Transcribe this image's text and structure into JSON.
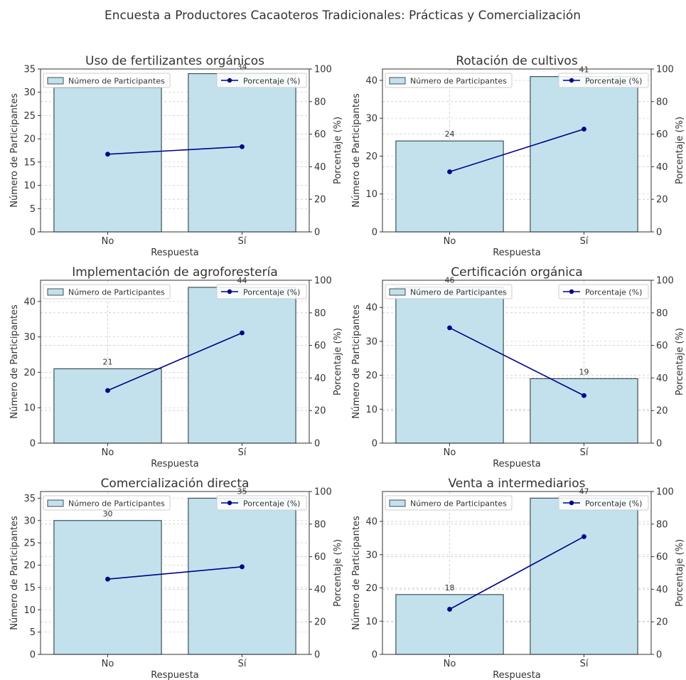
{
  "figure_title": "Encuesta a Productores Cacaoteros Tradicionales: Prácticas y Comercialización",
  "colors": {
    "bar_fill": "#c3e1ec",
    "bar_edge": "#3d4f57",
    "line": "#00008b",
    "grid": "#d0d0d0",
    "text": "#333333"
  },
  "chart_data": [
    {
      "type": "bar",
      "title": "Uso de fertilizantes orgánicos",
      "xlabel": "Respuesta",
      "ylabel": "Número de Participantes",
      "y2label": "Porcentaje (%)",
      "categories": [
        "No",
        "Sí"
      ],
      "ylim": [
        0,
        35
      ],
      "y2lim": [
        0,
        100
      ],
      "yticks": [
        0,
        5,
        10,
        15,
        20,
        25,
        30,
        35
      ],
      "y2ticks": [
        0,
        20,
        40,
        60,
        80,
        100
      ],
      "bar_labels": [
        "",
        "34"
      ],
      "series": [
        {
          "name": "Número de Participantes",
          "kind": "bar",
          "values": [
            31,
            34
          ]
        },
        {
          "name": "Porcentaje (%)",
          "kind": "line",
          "axis": "right",
          "values": [
            47.7,
            52.3
          ]
        }
      ],
      "legend": [
        "top-left",
        "top-right"
      ],
      "grid": true
    },
    {
      "type": "bar",
      "title": "Rotación de cultivos",
      "xlabel": "Respuesta",
      "ylabel": "Número de Participantes",
      "y2label": "Porcentaje (%)",
      "categories": [
        "No",
        "Sí"
      ],
      "ylim": [
        0,
        43
      ],
      "y2lim": [
        0,
        100
      ],
      "yticks": [
        0,
        10,
        20,
        30,
        40
      ],
      "y2ticks": [
        0,
        20,
        40,
        60,
        80,
        100
      ],
      "bar_labels": [
        "24",
        "41"
      ],
      "series": [
        {
          "name": "Número de Participantes",
          "kind": "bar",
          "values": [
            24,
            41
          ]
        },
        {
          "name": "Porcentaje (%)",
          "kind": "line",
          "axis": "right",
          "values": [
            36.9,
            63.1
          ]
        }
      ],
      "legend": [
        "top-left",
        "top-right"
      ],
      "grid": true
    },
    {
      "type": "bar",
      "title": "Implementación de agroforestería",
      "xlabel": "Respuesta",
      "ylabel": "Número de Participantes",
      "y2label": "Porcentaje (%)",
      "categories": [
        "No",
        "Sí"
      ],
      "ylim": [
        0,
        46
      ],
      "y2lim": [
        0,
        100
      ],
      "yticks": [
        0,
        10,
        20,
        30,
        40
      ],
      "y2ticks": [
        0,
        20,
        40,
        60,
        80,
        100
      ],
      "bar_labels": [
        "21",
        "44"
      ],
      "series": [
        {
          "name": "Número de Participantes",
          "kind": "bar",
          "values": [
            21,
            44
          ]
        },
        {
          "name": "Porcentaje (%)",
          "kind": "line",
          "axis": "right",
          "values": [
            32.3,
            67.7
          ]
        }
      ],
      "legend": [
        "top-left",
        "top-right"
      ],
      "grid": true
    },
    {
      "type": "bar",
      "title": "Certificación orgánica",
      "xlabel": "Respuesta",
      "ylabel": "Número de Participantes",
      "y2label": "Porcentaje (%)",
      "categories": [
        "No",
        "Sí"
      ],
      "ylim": [
        0,
        48
      ],
      "y2lim": [
        0,
        100
      ],
      "yticks": [
        0,
        10,
        20,
        30,
        40
      ],
      "y2ticks": [
        0,
        20,
        40,
        60,
        80,
        100
      ],
      "bar_labels": [
        "46",
        "19"
      ],
      "series": [
        {
          "name": "Número de Participantes",
          "kind": "bar",
          "values": [
            46,
            19
          ]
        },
        {
          "name": "Porcentaje (%)",
          "kind": "line",
          "axis": "right",
          "values": [
            70.8,
            29.2
          ]
        }
      ],
      "legend": [
        "top-left",
        "top-right"
      ],
      "grid": true
    },
    {
      "type": "bar",
      "title": "Comercialización directa",
      "xlabel": "Respuesta",
      "ylabel": "Número de Participantes",
      "y2label": "Porcentaje (%)",
      "categories": [
        "No",
        "Sí"
      ],
      "ylim": [
        0,
        36.5
      ],
      "y2lim": [
        0,
        100
      ],
      "yticks": [
        0,
        5,
        10,
        15,
        20,
        25,
        30,
        35
      ],
      "y2ticks": [
        0,
        20,
        40,
        60,
        80,
        100
      ],
      "bar_labels": [
        "30",
        "35"
      ],
      "series": [
        {
          "name": "Número de Participantes",
          "kind": "bar",
          "values": [
            30,
            35
          ]
        },
        {
          "name": "Porcentaje (%)",
          "kind": "line",
          "axis": "right",
          "values": [
            46.2,
            53.8
          ]
        }
      ],
      "legend": [
        "top-left",
        "top-right"
      ],
      "grid": true
    },
    {
      "type": "bar",
      "title": "Venta a intermediarios",
      "xlabel": "Respuesta",
      "ylabel": "Número de Participantes",
      "y2label": "Porcentaje (%)",
      "categories": [
        "No",
        "Sí"
      ],
      "ylim": [
        0,
        49
      ],
      "y2lim": [
        0,
        100
      ],
      "yticks": [
        0,
        10,
        20,
        30,
        40
      ],
      "y2ticks": [
        0,
        20,
        40,
        60,
        80,
        100
      ],
      "bar_labels": [
        "18",
        "47"
      ],
      "series": [
        {
          "name": "Número de Participantes",
          "kind": "bar",
          "values": [
            18,
            47
          ]
        },
        {
          "name": "Porcentaje (%)",
          "kind": "line",
          "axis": "right",
          "values": [
            27.7,
            72.3
          ]
        }
      ],
      "legend": [
        "top-left",
        "top-right"
      ],
      "grid": true
    }
  ]
}
